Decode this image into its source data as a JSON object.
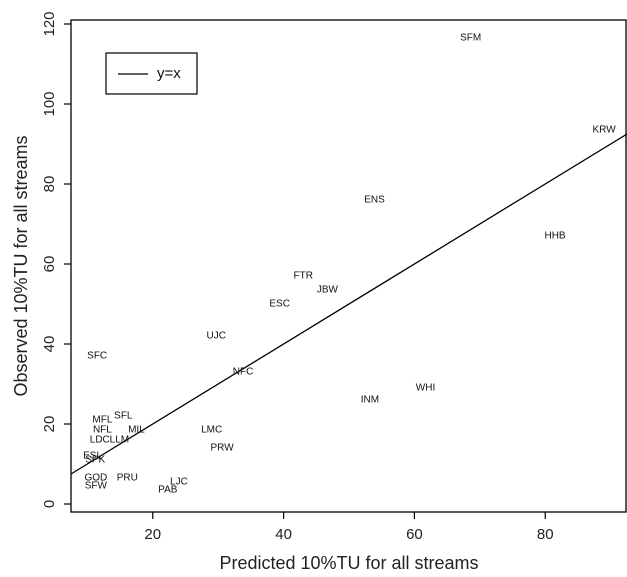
{
  "chart_data": {
    "type": "scatter",
    "title": "",
    "xlabel": "Predicted 10%TU for all streams",
    "ylabel": "Observed 10%TU for all streams",
    "xlim": [
      7.5,
      92.5
    ],
    "ylim": [
      -2,
      121
    ],
    "x_ticks": [
      20,
      40,
      60,
      80
    ],
    "y_ticks": [
      0,
      20,
      40,
      60,
      80,
      100,
      120
    ],
    "grid": false,
    "legend": {
      "position": "top-left",
      "entries": [
        "y=x"
      ]
    },
    "reference_line": {
      "slope": 1,
      "intercept": 0,
      "name": "y=x"
    },
    "points": [
      {
        "label": "SFM",
        "x": 68.6,
        "y": 116.5
      },
      {
        "label": "KRW",
        "x": 89.0,
        "y": 93.5
      },
      {
        "label": "ENS",
        "x": 53.9,
        "y": 76.0
      },
      {
        "label": "HHB",
        "x": 81.5,
        "y": 67.0
      },
      {
        "label": "FTR",
        "x": 43.0,
        "y": 57.0
      },
      {
        "label": "JBW",
        "x": 46.7,
        "y": 53.5
      },
      {
        "label": "ESC",
        "x": 39.4,
        "y": 50.0
      },
      {
        "label": "UJC",
        "x": 29.7,
        "y": 42.0
      },
      {
        "label": "SFC",
        "x": 11.5,
        "y": 37.0
      },
      {
        "label": "NFC",
        "x": 33.8,
        "y": 33.0
      },
      {
        "label": "WHI",
        "x": 61.7,
        "y": 29.0
      },
      {
        "label": "INM",
        "x": 53.2,
        "y": 26.0
      },
      {
        "label": "MFL",
        "x": 12.3,
        "y": 21.0
      },
      {
        "label": "SFL",
        "x": 15.5,
        "y": 22.0
      },
      {
        "label": "NFL",
        "x": 12.3,
        "y": 18.5
      },
      {
        "label": "MIL",
        "x": 17.5,
        "y": 18.5
      },
      {
        "label": "LMC",
        "x": 29.0,
        "y": 18.5
      },
      {
        "label": "LDC",
        "x": 11.9,
        "y": 16.0
      },
      {
        "label": "LLM",
        "x": 14.9,
        "y": 16.0
      },
      {
        "label": "PRW",
        "x": 30.6,
        "y": 14.0
      },
      {
        "label": "ESL",
        "x": 10.8,
        "y": 12.0
      },
      {
        "label": "SPK",
        "x": 11.2,
        "y": 11.0
      },
      {
        "label": "GOD",
        "x": 11.3,
        "y": 6.5
      },
      {
        "label": "PRU",
        "x": 16.1,
        "y": 6.5
      },
      {
        "label": "LJC",
        "x": 24.0,
        "y": 5.5
      },
      {
        "label": "SFW",
        "x": 11.3,
        "y": 4.5
      },
      {
        "label": "PAB",
        "x": 22.3,
        "y": 3.5
      }
    ]
  }
}
